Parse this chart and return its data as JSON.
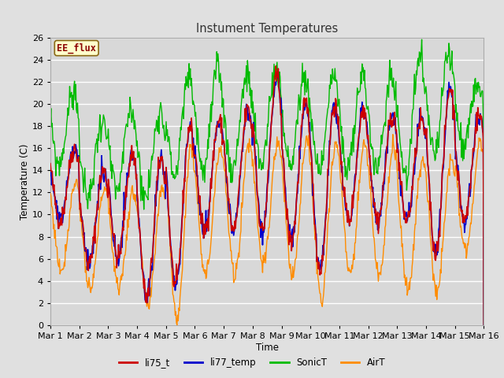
{
  "title": "Instument Temperatures",
  "xlabel": "Time",
  "ylabel": "Temperature (C)",
  "ylim": [
    0,
    26
  ],
  "xlim": [
    0,
    15
  ],
  "xtick_labels": [
    "Mar 1",
    "Mar 2",
    "Mar 3",
    "Mar 4",
    "Mar 5",
    "Mar 6",
    "Mar 7",
    "Mar 8",
    "Mar 9",
    "Mar 10",
    "Mar 11",
    "Mar 12",
    "Mar 13",
    "Mar 14",
    "Mar 15",
    "Mar 16"
  ],
  "annotation_text": "EE_flux",
  "annotation_color": "#8B0000",
  "annotation_bg": "#FFFFCC",
  "annotation_border": "#8B6914",
  "fig_bg_color": "#E0E0E0",
  "plot_bg_color": "#D8D8D8",
  "grid_color": "#FFFFFF",
  "colors": {
    "li75_t": "#CC0000",
    "li77_temp": "#0000CC",
    "SonicT": "#00BB00",
    "AirT": "#FF8C00"
  },
  "day_min_li": [
    9.5,
    5.5,
    6.0,
    2.5,
    3.5,
    8.5,
    8.5,
    8.5,
    7.5,
    5.0,
    9.5,
    9.5,
    9.5,
    6.5,
    9.5
  ],
  "day_max_li": [
    16.0,
    14.0,
    15.5,
    15.0,
    18.0,
    18.5,
    19.5,
    22.5,
    20.0,
    20.0,
    19.5,
    19.0,
    18.5,
    21.5,
    19.0
  ],
  "day_min_air": [
    5.0,
    3.0,
    3.5,
    1.5,
    0.5,
    4.5,
    4.5,
    5.5,
    4.5,
    2.5,
    4.5,
    4.5,
    3.0,
    3.0,
    6.5
  ],
  "day_max_air": [
    13.0,
    12.5,
    12.0,
    12.5,
    16.0,
    16.0,
    16.5,
    16.5,
    16.5,
    16.5,
    16.5,
    16.0,
    15.0,
    15.0,
    16.5
  ],
  "day_min_sonic": [
    14.5,
    11.5,
    12.0,
    11.5,
    13.5,
    14.0,
    14.0,
    14.5,
    14.5,
    14.0,
    14.0,
    14.0,
    13.5,
    15.5,
    16.5
  ],
  "day_max_sonic": [
    21.0,
    18.5,
    19.5,
    19.5,
    22.5,
    23.0,
    22.5,
    23.0,
    22.5,
    22.5,
    22.5,
    22.5,
    24.0,
    24.5,
    22.0
  ]
}
